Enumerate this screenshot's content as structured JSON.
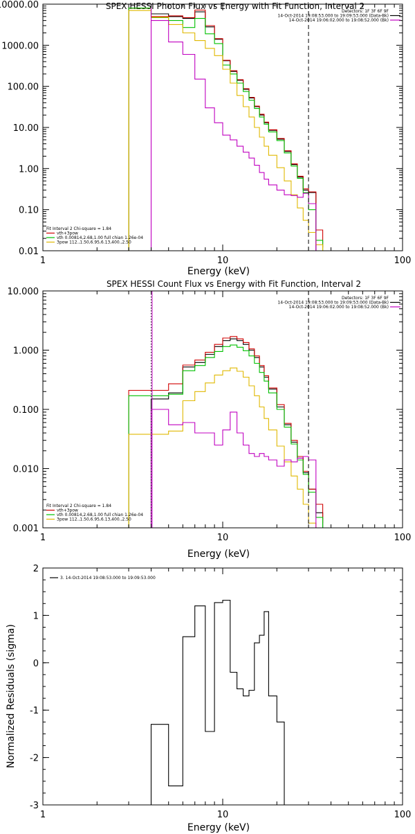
{
  "chart_data": [
    {
      "type": "line",
      "title": "SPEX HESSI Photon Flux vs Energy with Fit Function, Interval 2",
      "xlabel": "Energy (keV)",
      "ylabel": "",
      "xscale": "log",
      "yscale": "log",
      "xlim": [
        1,
        100
      ],
      "ylim": [
        0.01,
        10000
      ],
      "x_tick_labels": [
        "1",
        "10",
        "100"
      ],
      "y_tick_values": [
        0.01,
        0.1,
        1,
        10,
        100,
        1000,
        10000
      ],
      "y_tick_labels": [
        "0.01",
        "0.10",
        "1.00",
        "10.00",
        "100.00",
        "1000.00",
        "10000.00"
      ],
      "vlines": [
        {
          "x": 4.0,
          "style": "solid",
          "color": "#c000c0"
        },
        {
          "x": 30.0,
          "style": "dashed",
          "color": "#000000"
        }
      ],
      "legend_topright": [
        {
          "text": "Detectors: 1F 3F 6F 9F",
          "color": ""
        },
        {
          "text": "14-Oct-2014 19:08:53.000 to 19:09:53.000 (Data-Bk)",
          "color": "#000000"
        },
        {
          "text": "14-Oct-2014 19:06:02.000 to 19:08:52.000 (Bk)",
          "color": "#c000c0"
        }
      ],
      "legend_bottomleft": [
        {
          "text": "Fit Interval 2   Chi-square = 1.84",
          "color": ""
        },
        {
          "text": "vth+3pow",
          "color": "#d00000"
        },
        {
          "text": "vth 0.00814,2.68,1.00  full chian 1.26e-04",
          "color": "#00c000"
        },
        {
          "text": "3pow 112.,1.50,6.95,6.13,400.,2.50",
          "color": "#e0b800"
        }
      ],
      "edges": [
        3.0,
        4.0,
        5.0,
        6.0,
        7.0,
        8.0,
        9.0,
        10.0,
        11.0,
        12.0,
        13.0,
        14.0,
        15.0,
        16.0,
        17.0,
        18.0,
        20.0,
        22.0,
        24.0,
        26.0,
        28.0,
        30.0,
        33.0,
        36.0
      ],
      "series": [
        {
          "name": "",
          "color": "#000000",
          "y_min": 0.01,
          "values": [
            8000,
            5800,
            5000,
            4500,
            6500,
            2800,
            1400,
            420,
            230,
            140,
            85,
            52,
            32,
            20,
            13,
            8.5,
            5.2,
            2.6,
            1.25,
            0.62,
            0.3,
            0.26,
            null,
            null
          ]
        },
        {
          "name": "",
          "color": "#d00000",
          "y_min": 0.01,
          "values": [
            8000,
            5000,
            5200,
            4700,
            7200,
            3000,
            1450,
            430,
            240,
            145,
            88,
            54,
            33,
            21,
            13.5,
            8.8,
            5.4,
            2.7,
            1.3,
            0.65,
            0.32,
            0.27,
            0.032,
            0.012
          ]
        },
        {
          "name": "",
          "color": "#00c000",
          "y_min": 0.01,
          "values": [
            8000,
            4700,
            4000,
            2700,
            4500,
            1900,
            1100,
            330,
            200,
            120,
            75,
            46,
            29,
            18,
            12,
            7.8,
            4.8,
            2.4,
            1.15,
            0.58,
            0.26,
            0.1,
            0.018,
            0.005
          ]
        },
        {
          "name": "",
          "color": "#e0b800",
          "y_min": 0.01,
          "values": [
            7000,
            4800,
            3200,
            2000,
            1300,
            840,
            560,
            260,
            120,
            60,
            32,
            18,
            10,
            5.8,
            3.5,
            2.1,
            1.05,
            0.5,
            0.23,
            0.11,
            0.055,
            0.028,
            0.014,
            0.007
          ]
        },
        {
          "name": "",
          "color": "#c000c0",
          "y_min": 0.01,
          "values": [
            null,
            4000,
            1200,
            600,
            150,
            30,
            13,
            6.5,
            5.0,
            3.5,
            2.5,
            1.8,
            1.2,
            0.8,
            0.55,
            0.4,
            0.3,
            0.23,
            0.22,
            0.2,
            0.25,
            0.14,
            null,
            null
          ]
        }
      ]
    },
    {
      "type": "line",
      "title": "SPEX HESSI Count Flux vs Energy with Fit Function, Interval 2",
      "xlabel": "Energy (keV)",
      "ylabel": "",
      "xscale": "log",
      "yscale": "log",
      "xlim": [
        1,
        100
      ],
      "ylim": [
        0.001,
        10
      ],
      "x_tick_labels": [
        "1",
        "10",
        "100"
      ],
      "y_tick_values": [
        0.001,
        0.01,
        0.1,
        1,
        10
      ],
      "y_tick_labels": [
        "0.001",
        "0.010",
        "0.100",
        "1.000",
        "10.000"
      ],
      "vlines": [
        {
          "x": 4.0,
          "style": "dotted",
          "color": "#000000"
        },
        {
          "x": 4.05,
          "style": "solid",
          "color": "#c000c0"
        },
        {
          "x": 30.0,
          "style": "dashed",
          "color": "#000000"
        }
      ],
      "legend_topright": [
        {
          "text": "Detectors: 1F 3F 6F 9F",
          "color": ""
        },
        {
          "text": "14-Oct-2014 19:08:53.000 to 19:09:53.000 (Data-Bk)",
          "color": "#000000"
        },
        {
          "text": "14-Oct-2014 19:06:02.000 to 19:08:52.000 (Bk)",
          "color": "#c000c0"
        }
      ],
      "legend_bottomleft": [
        {
          "text": "Fit Interval 2   Chi-square = 1.84",
          "color": ""
        },
        {
          "text": "vth+3pow",
          "color": "#d00000"
        },
        {
          "text": "vth 0.00814,2.68,1.00  full chian 1.26e-04",
          "color": "#00c000"
        },
        {
          "text": "3pow 112.,1.50,6.95,6.13,400.,2.50",
          "color": "#e0b800"
        }
      ],
      "edges": [
        3.0,
        4.0,
        5.0,
        6.0,
        7.0,
        8.0,
        9.0,
        10.0,
        11.0,
        12.0,
        13.0,
        14.0,
        15.0,
        16.0,
        17.0,
        18.0,
        20.0,
        22.0,
        24.0,
        26.0,
        28.0,
        30.0,
        33.0,
        36.0
      ],
      "series": [
        {
          "name": "",
          "color": "#000000",
          "y_min": 0.001,
          "values": [
            null,
            0.15,
            0.19,
            0.52,
            0.62,
            0.85,
            1.15,
            1.45,
            1.55,
            1.45,
            1.25,
            1.0,
            0.75,
            0.52,
            0.35,
            0.22,
            0.11,
            0.055,
            0.028,
            0.015,
            0.0085,
            0.0045,
            0.0018,
            null
          ]
        },
        {
          "name": "",
          "color": "#d00000",
          "y_min": 0.001,
          "values": [
            0.21,
            0.21,
            0.27,
            0.56,
            0.68,
            0.92,
            1.25,
            1.6,
            1.7,
            1.55,
            1.35,
            1.05,
            0.8,
            0.55,
            0.37,
            0.23,
            0.12,
            0.058,
            0.03,
            0.016,
            0.009,
            0.0045,
            0.0025,
            0.0012
          ]
        },
        {
          "name": "",
          "color": "#00c000",
          "y_min": 0.001,
          "values": [
            0.17,
            0.17,
            0.18,
            0.45,
            0.55,
            0.75,
            0.95,
            1.15,
            1.22,
            1.12,
            0.98,
            0.8,
            0.6,
            0.42,
            0.3,
            0.19,
            0.1,
            0.05,
            0.026,
            0.014,
            0.008,
            0.004,
            0.0015,
            0.0007
          ]
        },
        {
          "name": "",
          "color": "#e0b800",
          "y_min": 0.001,
          "values": [
            0.038,
            0.038,
            0.043,
            0.14,
            0.2,
            0.28,
            0.38,
            0.45,
            0.5,
            0.44,
            0.35,
            0.25,
            0.17,
            0.11,
            0.07,
            0.045,
            0.024,
            0.013,
            0.0075,
            0.0045,
            0.0025,
            0.0012,
            0.0006,
            null
          ]
        },
        {
          "name": "",
          "color": "#c000c0",
          "y_min": 0.001,
          "values": [
            null,
            0.1,
            0.055,
            0.06,
            0.04,
            0.04,
            0.025,
            0.045,
            0.09,
            0.04,
            0.025,
            0.018,
            0.016,
            0.018,
            0.016,
            0.014,
            0.011,
            0.014,
            0.013,
            0.015,
            0.016,
            0.014,
            null,
            null
          ]
        }
      ]
    },
    {
      "type": "line",
      "title": "",
      "xlabel": "Energy (keV)",
      "ylabel": "Normalized Residuals (sigma)",
      "xscale": "log",
      "yscale": "linear",
      "xlim": [
        1,
        100
      ],
      "ylim": [
        -3,
        2
      ],
      "x_tick_labels": [
        "1",
        "10",
        "100"
      ],
      "y_tick_values": [
        -3,
        -2,
        -1,
        0,
        1,
        2
      ],
      "y_tick_labels": [
        "-3",
        "-2",
        "-1",
        "0",
        "1",
        "2"
      ],
      "vlines": [],
      "legend_topright": [],
      "legend_bottomleft": [],
      "legend_topleft": [
        {
          "text": "3. 14-Oct-2014 19:08:53.000 to 19:09:53.000",
          "color": "#000000"
        }
      ],
      "edges": [
        4.0,
        5.0,
        6.0,
        7.0,
        8.0,
        9.0,
        10.0,
        11.0,
        12.0,
        13.0,
        14.0,
        15.0,
        16.0,
        17.0,
        18.0,
        20.0,
        22.0,
        24.0,
        26.0,
        28.0,
        30.0
      ],
      "series": [
        {
          "name": "",
          "color": "#000000",
          "y_min": -3,
          "values": [
            -1.3,
            -2.6,
            0.55,
            1.2,
            -1.45,
            1.27,
            1.32,
            -0.2,
            -0.55,
            -0.7,
            -0.58,
            0.42,
            0.58,
            1.08,
            -0.7,
            -1.25
          ]
        }
      ]
    }
  ]
}
